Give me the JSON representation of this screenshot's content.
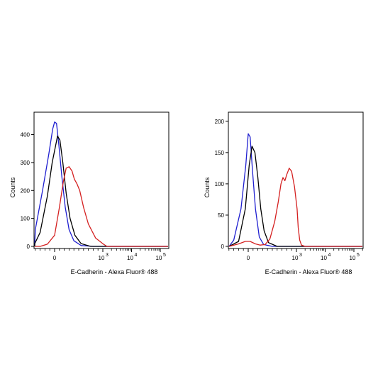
{
  "chart_data": [
    {
      "type": "line",
      "title": "",
      "xlabel": "E-Cadherin - Alexa Fluor® 488",
      "ylabel": "Counts",
      "x_scale": "biexponential",
      "xlim": [
        -3000,
        200000
      ],
      "ylim": [
        0,
        470
      ],
      "x_ticks": [
        {
          "value": 0,
          "label": "0"
        },
        {
          "value": 1000,
          "label": "10",
          "exp": "3"
        },
        {
          "value": 10000,
          "label": "10",
          "exp": "4"
        },
        {
          "value": 100000,
          "label": "10",
          "exp": "5"
        }
      ],
      "y_ticks": [
        0,
        100,
        200,
        300,
        400
      ],
      "grid": false,
      "legend": "none",
      "series": [
        {
          "color": "#1f1fd0",
          "points": [
            [
              -2500,
              0
            ],
            [
              -900,
              0
            ],
            [
              -600,
              10
            ],
            [
              -400,
              60
            ],
            [
              -250,
              200
            ],
            [
              -120,
              330
            ],
            [
              -40,
              420
            ],
            [
              0,
              445
            ],
            [
              40,
              440
            ],
            [
              90,
              360
            ],
            [
              150,
              250
            ],
            [
              220,
              140
            ],
            [
              300,
              60
            ],
            [
              400,
              20
            ],
            [
              550,
              3
            ],
            [
              800,
              0
            ],
            [
              200000,
              0
            ]
          ]
        },
        {
          "color": "#000000",
          "points": [
            [
              -2500,
              0
            ],
            [
              -700,
              0
            ],
            [
              -450,
              10
            ],
            [
              -300,
              50
            ],
            [
              -150,
              180
            ],
            [
              -50,
              300
            ],
            [
              20,
              360
            ],
            [
              60,
              395
            ],
            [
              110,
              380
            ],
            [
              170,
              300
            ],
            [
              240,
              190
            ],
            [
              320,
              100
            ],
            [
              420,
              40
            ],
            [
              550,
              10
            ],
            [
              750,
              0
            ],
            [
              200000,
              0
            ]
          ]
        },
        {
          "color": "#d42020",
          "points": [
            [
              -2500,
              0
            ],
            [
              -300,
              0
            ],
            [
              -150,
              8
            ],
            [
              0,
              40
            ],
            [
              100,
              140
            ],
            [
              180,
              230
            ],
            [
              240,
              280
            ],
            [
              300,
              285
            ],
            [
              360,
              270
            ],
            [
              410,
              240
            ],
            [
              460,
              225
            ],
            [
              520,
              200
            ],
            [
              600,
              140
            ],
            [
              700,
              80
            ],
            [
              850,
              30
            ],
            [
              1050,
              8
            ],
            [
              1400,
              0
            ],
            [
              200000,
              0
            ]
          ]
        }
      ]
    },
    {
      "type": "line",
      "title": "",
      "xlabel": "E-Cadherin - Alexa Fluor® 488",
      "ylabel": "Counts",
      "x_scale": "biexponential",
      "xlim": [
        -3000,
        200000
      ],
      "ylim": [
        0,
        210
      ],
      "x_ticks": [
        {
          "value": 0,
          "label": "0"
        },
        {
          "value": 1000,
          "label": "10",
          "exp": "3"
        },
        {
          "value": 10000,
          "label": "10",
          "exp": "4"
        },
        {
          "value": 100000,
          "label": "10",
          "exp": "5"
        }
      ],
      "y_ticks": [
        0,
        50,
        100,
        150,
        200
      ],
      "grid": false,
      "legend": "none",
      "series": [
        {
          "color": "#1f1fd0",
          "points": [
            [
              -2500,
              0
            ],
            [
              -500,
              0
            ],
            [
              -300,
              10
            ],
            [
              -150,
              60
            ],
            [
              -50,
              130
            ],
            [
              0,
              180
            ],
            [
              40,
              175
            ],
            [
              90,
              120
            ],
            [
              150,
              60
            ],
            [
              230,
              15
            ],
            [
              320,
              3
            ],
            [
              500,
              0
            ],
            [
              200000,
              0
            ]
          ]
        },
        {
          "color": "#000000",
          "points": [
            [
              -2500,
              0
            ],
            [
              -400,
              0
            ],
            [
              -200,
              8
            ],
            [
              -60,
              60
            ],
            [
              20,
              130
            ],
            [
              80,
              160
            ],
            [
              140,
              150
            ],
            [
              200,
              110
            ],
            [
              260,
              60
            ],
            [
              330,
              25
            ],
            [
              420,
              6
            ],
            [
              600,
              0
            ],
            [
              200000,
              0
            ]
          ]
        },
        {
          "color": "#d42020",
          "points": [
            [
              -2500,
              0
            ],
            [
              -400,
              0
            ],
            [
              -200,
              4
            ],
            [
              -60,
              8
            ],
            [
              40,
              8
            ],
            [
              150,
              4
            ],
            [
              250,
              2
            ],
            [
              350,
              3
            ],
            [
              450,
              12
            ],
            [
              550,
              40
            ],
            [
              620,
              70
            ],
            [
              680,
              100
            ],
            [
              720,
              110
            ],
            [
              760,
              105
            ],
            [
              800,
              115
            ],
            [
              850,
              125
            ],
            [
              900,
              120
            ],
            [
              960,
              95
            ],
            [
              1050,
              60
            ],
            [
              1150,
              30
            ],
            [
              1300,
              10
            ],
            [
              1500,
              2
            ],
            [
              2000,
              0
            ],
            [
              200000,
              0
            ]
          ]
        }
      ]
    }
  ]
}
